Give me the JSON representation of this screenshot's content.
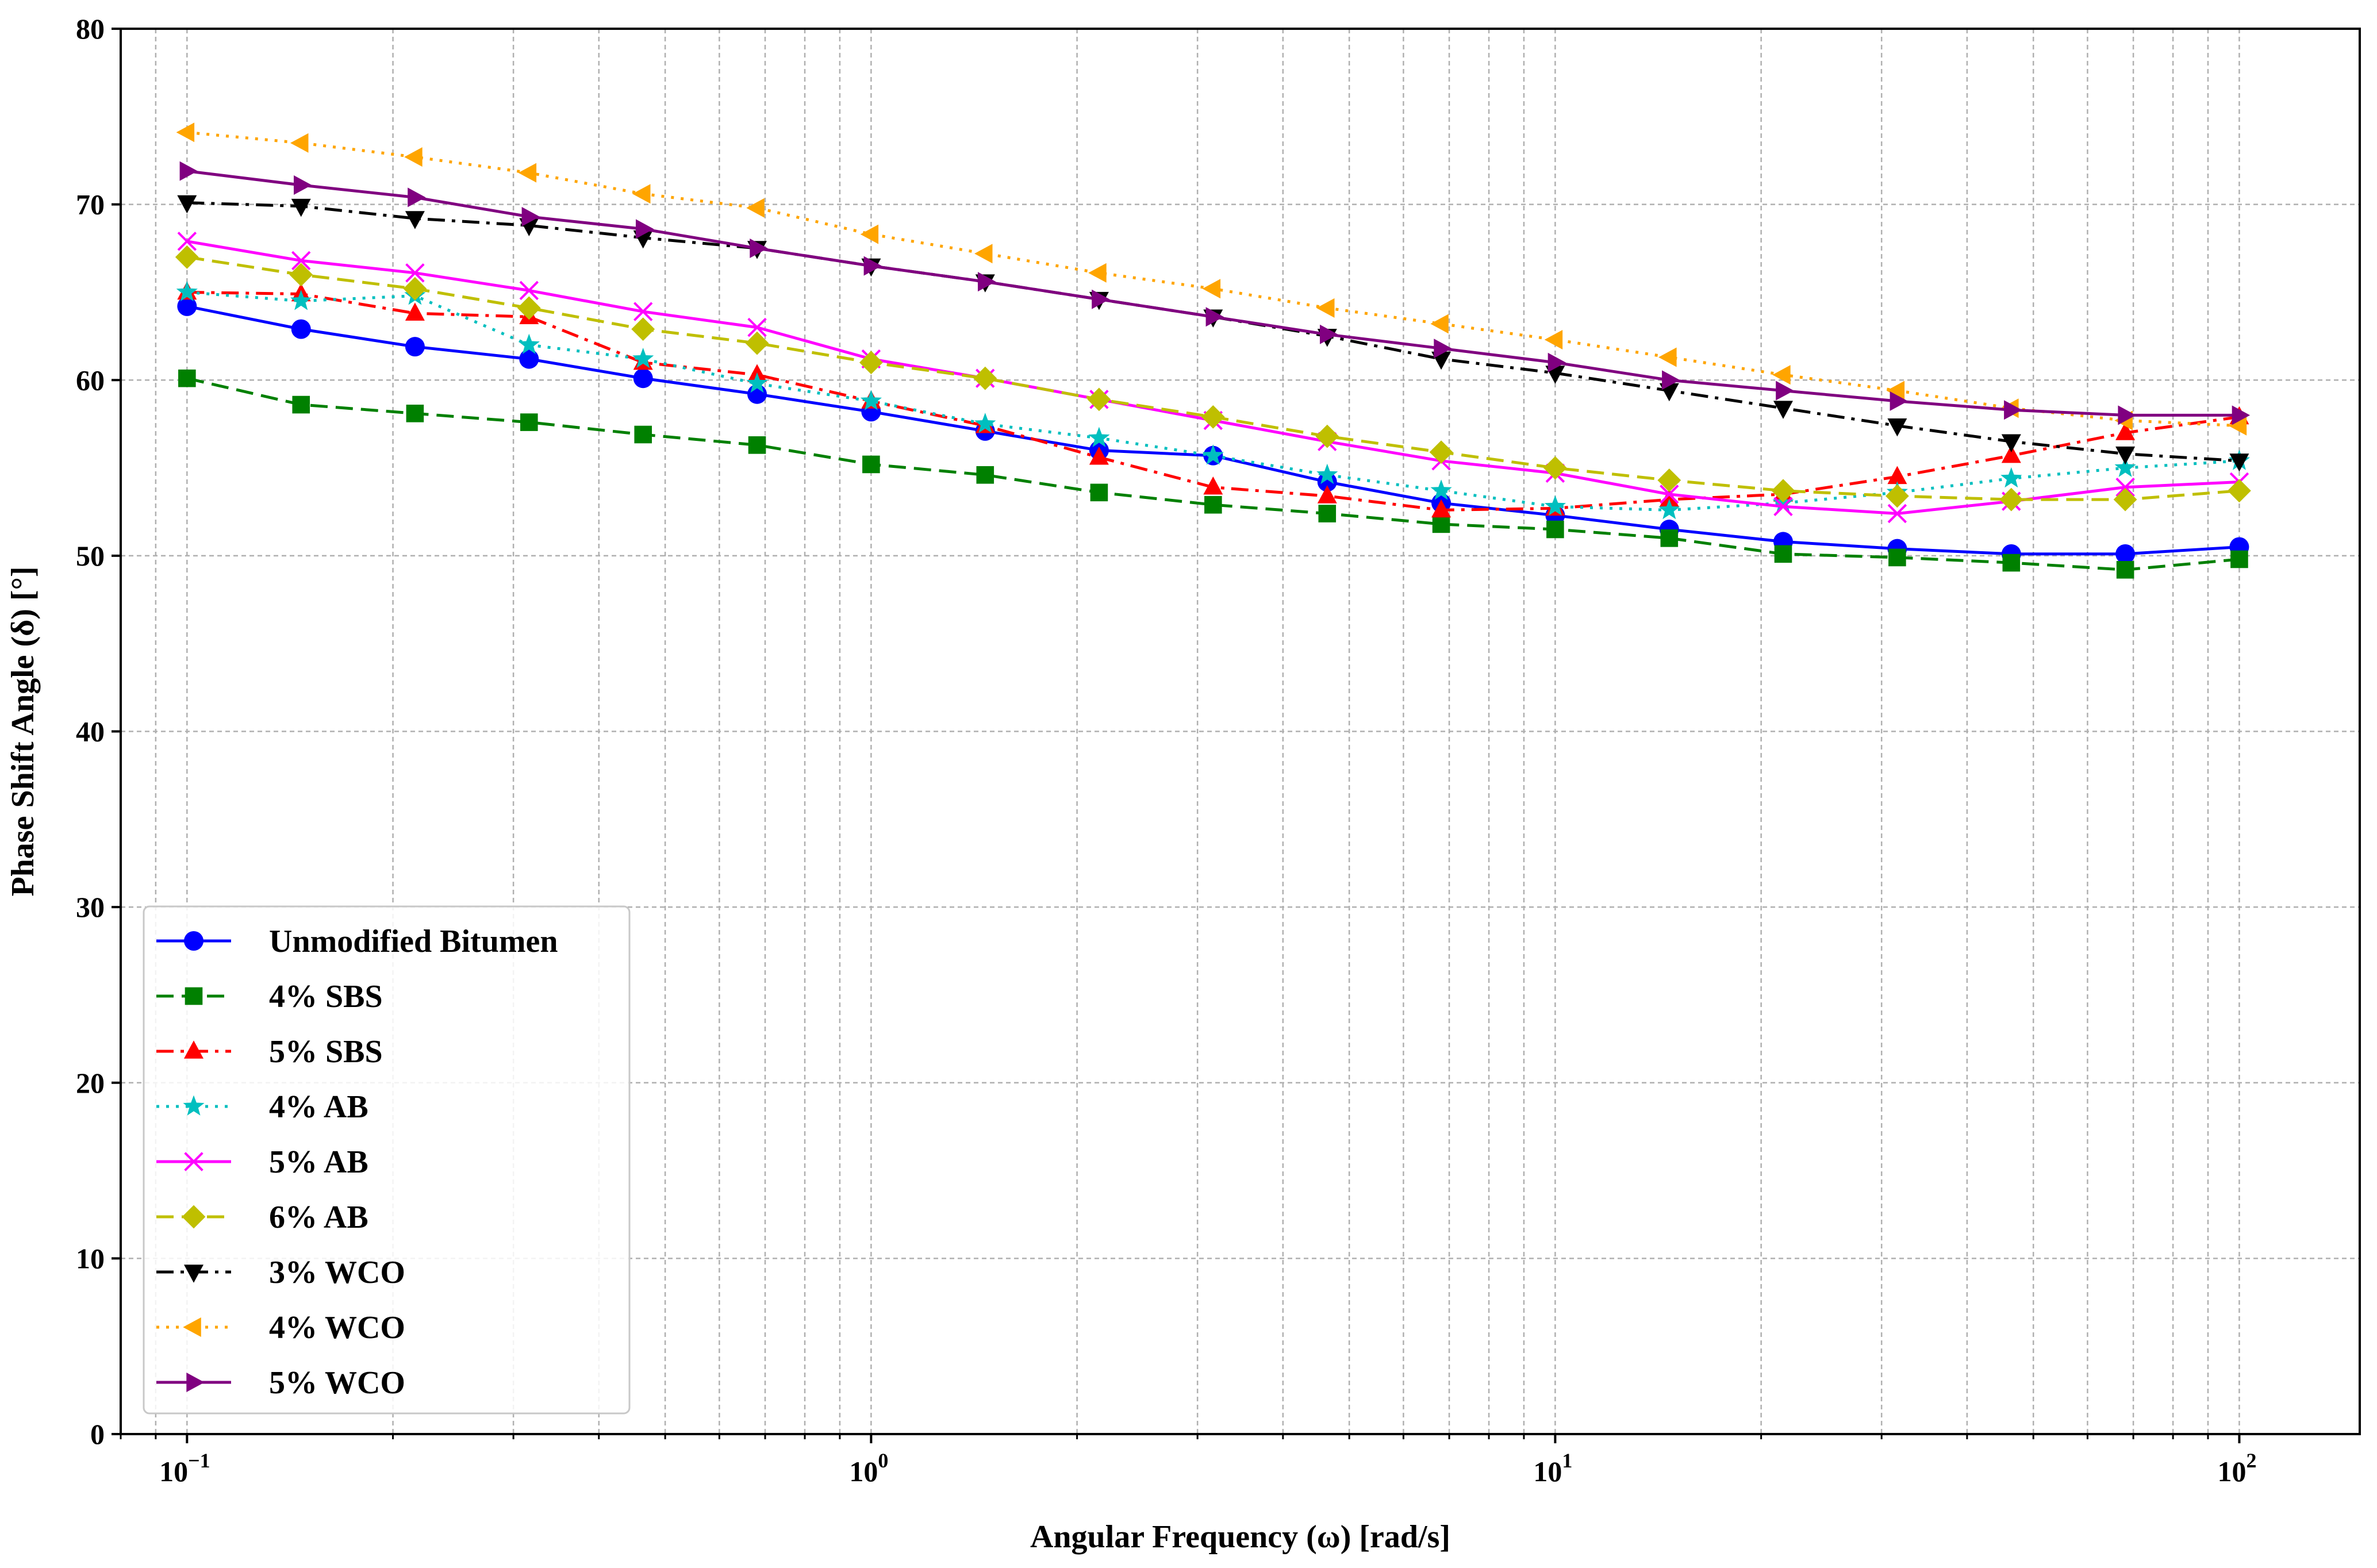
{
  "chart_data": {
    "type": "line",
    "title": "",
    "xlabel": "Angular Frequency (ω) [rad/s]",
    "ylabel": "Phase Shift Angle (δ) [°]",
    "xscale": "log",
    "xlim": [
      0.08,
      150
    ],
    "ylim": [
      0,
      80
    ],
    "grid": true,
    "legend_position": "lower-left",
    "x_ticks": [
      {
        "value": 0.1,
        "base": "10",
        "exp": "−1"
      },
      {
        "value": 1,
        "base": "10",
        "exp": "0"
      },
      {
        "value": 10,
        "base": "10",
        "exp": "1"
      },
      {
        "value": 100,
        "base": "10",
        "exp": "2"
      }
    ],
    "y_ticks": [
      0,
      10,
      20,
      30,
      40,
      50,
      60,
      70,
      80
    ],
    "x": [
      0.1,
      0.1468,
      0.2154,
      0.3162,
      0.4642,
      0.6813,
      1.0,
      1.468,
      2.154,
      3.162,
      4.642,
      6.813,
      10.0,
      14.68,
      21.54,
      31.62,
      46.42,
      68.13,
      100.0
    ],
    "series": [
      {
        "name": "Unmodified Bitumen",
        "color": "#0000ff",
        "dash": "solid",
        "marker": "circle",
        "values": [
          64.2,
          62.9,
          61.9,
          61.2,
          60.1,
          59.2,
          58.2,
          57.1,
          56.0,
          55.7,
          54.2,
          53.0,
          52.3,
          51.5,
          50.8,
          50.4,
          50.1,
          50.1,
          50.5
        ]
      },
      {
        "name": "4% SBS",
        "color": "#008000",
        "dash": "dashed",
        "marker": "square",
        "values": [
          60.1,
          58.6,
          58.1,
          57.6,
          56.9,
          56.3,
          55.2,
          54.6,
          53.6,
          52.9,
          52.4,
          51.8,
          51.5,
          51.0,
          50.1,
          49.9,
          49.6,
          49.2,
          49.8
        ]
      },
      {
        "name": "5% SBS",
        "color": "#ff0000",
        "dash": "dashdot",
        "marker": "triangle-up",
        "values": [
          65.0,
          64.9,
          63.8,
          63.6,
          61.0,
          60.3,
          58.8,
          57.4,
          55.6,
          53.9,
          53.4,
          52.6,
          52.7,
          53.2,
          53.5,
          54.5,
          55.7,
          57.0,
          57.9
        ]
      },
      {
        "name": "4% AB",
        "color": "#00bfbf",
        "dash": "dotted",
        "marker": "star",
        "values": [
          65.0,
          64.5,
          64.8,
          62.0,
          61.2,
          59.8,
          58.8,
          57.5,
          56.7,
          55.7,
          54.6,
          53.7,
          52.8,
          52.6,
          53.0,
          53.6,
          54.4,
          55.0,
          55.4
        ]
      },
      {
        "name": "5% AB",
        "color": "#ff00ff",
        "dash": "solid",
        "marker": "x",
        "values": [
          67.9,
          66.8,
          66.1,
          65.1,
          63.9,
          63.0,
          61.2,
          60.1,
          58.9,
          57.7,
          56.5,
          55.4,
          54.7,
          53.5,
          52.8,
          52.4,
          53.1,
          53.9,
          54.2
        ]
      },
      {
        "name": "6% AB",
        "color": "#bfbf00",
        "dash": "dashed",
        "marker": "diamond",
        "values": [
          67.0,
          66.0,
          65.2,
          64.1,
          62.9,
          62.1,
          61.0,
          60.1,
          58.9,
          57.9,
          56.8,
          55.9,
          55.0,
          54.3,
          53.7,
          53.4,
          53.2,
          53.2,
          53.7
        ]
      },
      {
        "name": "3% WCO",
        "color": "#000000",
        "dash": "dashdot",
        "marker": "triangle-down",
        "values": [
          70.1,
          69.9,
          69.2,
          68.8,
          68.1,
          67.5,
          66.5,
          65.6,
          64.6,
          63.6,
          62.5,
          61.2,
          60.4,
          59.4,
          58.4,
          57.4,
          56.5,
          55.8,
          55.4
        ]
      },
      {
        "name": "4% WCO",
        "color": "#ffa500",
        "dash": "dotted",
        "marker": "triangle-left",
        "values": [
          74.1,
          73.5,
          72.7,
          71.8,
          70.6,
          69.8,
          68.3,
          67.2,
          66.1,
          65.2,
          64.1,
          63.2,
          62.3,
          61.3,
          60.3,
          59.4,
          58.4,
          57.7,
          57.4
        ]
      },
      {
        "name": "5% WCO",
        "color": "#800080",
        "dash": "solid",
        "marker": "triangle-right",
        "values": [
          71.9,
          71.1,
          70.4,
          69.3,
          68.6,
          67.5,
          66.5,
          65.6,
          64.6,
          63.6,
          62.6,
          61.8,
          61.0,
          60.0,
          59.4,
          58.8,
          58.3,
          58.0,
          58.0
        ]
      }
    ]
  }
}
